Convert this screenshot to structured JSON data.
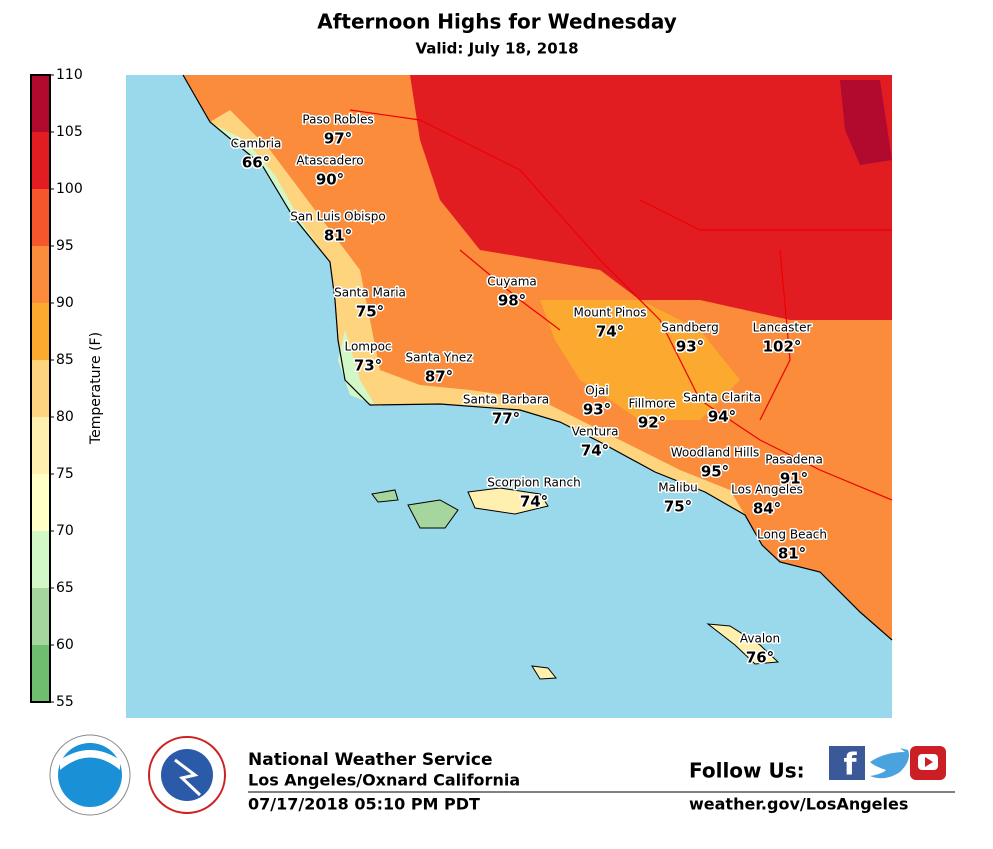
{
  "header": {
    "title": "Afternoon Highs for Wednesday",
    "subtitle": "Valid: July 18, 2018"
  },
  "colorbar": {
    "label": "Temperature (F)",
    "ticks": [
      55,
      60,
      65,
      70,
      75,
      80,
      85,
      90,
      95,
      100,
      105,
      110
    ],
    "colors": [
      "#6fbe6f",
      "#a5d69d",
      "#d3f8c8",
      "#ffffc6",
      "#fff0b0",
      "#fed47e",
      "#fca92f",
      "#fa8c3c",
      "#f5562c",
      "#e21d22",
      "#b20a2e"
    ]
  },
  "cities": [
    {
      "name": "Paso Robles",
      "temp": "97°"
    },
    {
      "name": "Cambria",
      "temp": "66°"
    },
    {
      "name": "Atascadero",
      "temp": "90°"
    },
    {
      "name": "San Luis Obispo",
      "temp": "81°"
    },
    {
      "name": "Cuyama",
      "temp": "98°"
    },
    {
      "name": "Santa Maria",
      "temp": "75°"
    },
    {
      "name": "Mount Pinos",
      "temp": "74°"
    },
    {
      "name": "Sandberg",
      "temp": "93°"
    },
    {
      "name": "Lancaster",
      "temp": "102°"
    },
    {
      "name": "Lompoc",
      "temp": "73°"
    },
    {
      "name": "Santa Ynez",
      "temp": "87°"
    },
    {
      "name": "Ojai",
      "temp": "93°"
    },
    {
      "name": "Santa Barbara",
      "temp": "77°"
    },
    {
      "name": "Fillmore",
      "temp": "92°"
    },
    {
      "name": "Santa Clarita",
      "temp": "94°"
    },
    {
      "name": "Ventura",
      "temp": "74°"
    },
    {
      "name": "Woodland Hills",
      "temp": "95°"
    },
    {
      "name": "Pasadena",
      "temp": "91°"
    },
    {
      "name": "Scorpion Ranch",
      "temp": "74°"
    },
    {
      "name": "Malibu",
      "temp": "75°"
    },
    {
      "name": "Los Angeles",
      "temp": "84°"
    },
    {
      "name": "Long Beach",
      "temp": "81°"
    },
    {
      "name": "Avalon",
      "temp": "76°"
    }
  ],
  "footer": {
    "office": "National Weather Service",
    "location": "Los Angeles/Oxnard California",
    "issued": "07/17/2018 05:10 PM PDT",
    "follow": "Follow Us:",
    "url": "weather.gov/LosAngeles"
  }
}
